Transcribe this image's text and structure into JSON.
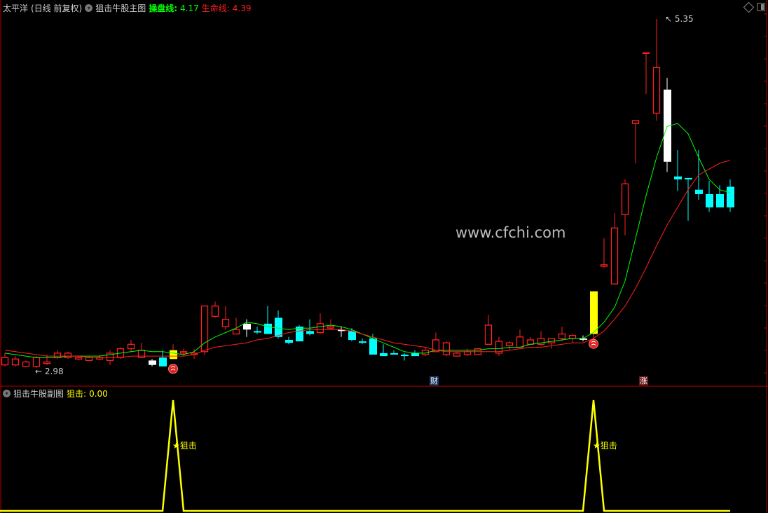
{
  "header": {
    "stock": "太平洋",
    "period": "(日线 前复权)",
    "indicator": "狙击牛股主图",
    "ma1_label": "操盘线:",
    "ma1_value": "4.17",
    "ma2_label": "生命线:",
    "ma2_value": "4.39"
  },
  "sub_header": {
    "indicator": "狙击牛股副图",
    "signal_label": "狙击:",
    "signal_value": "0.00"
  },
  "watermark": "www.cfchi.com",
  "markers": {
    "cai": "财",
    "zhang": "涨",
    "signal_text": "★狙击"
  },
  "icons": {
    "top_right": [
      "diamond-icon",
      "window-toggle-icon"
    ],
    "signal": "ball-icon",
    "dropdown": "chevron-down-icon"
  },
  "colors": {
    "up": "#ff2020",
    "down": "#00ffff",
    "ma1": "#00ff00",
    "ma2": "#ff2020",
    "signal": "#ffff00",
    "white_candle": "#ffffff"
  },
  "chart_data": {
    "type": "candlestick",
    "price_high_label": "5.35",
    "price_low_label": "2.98",
    "candles": [
      {
        "o": 3.0,
        "c": 3.05,
        "h": 3.08,
        "l": 2.99
      },
      {
        "o": 3.0,
        "c": 3.04,
        "h": 3.06,
        "l": 2.99
      },
      {
        "o": 2.99,
        "c": 3.02,
        "h": 3.03,
        "l": 2.99
      },
      {
        "o": 2.99,
        "c": 3.05,
        "h": 3.06,
        "l": 2.98
      },
      {
        "o": 3.01,
        "c": 3.02,
        "h": 3.07,
        "l": 3.0
      },
      {
        "o": 3.05,
        "c": 3.08,
        "h": 3.1,
        "l": 3.04
      },
      {
        "o": 3.05,
        "c": 3.08,
        "h": 3.09,
        "l": 3.04
      },
      {
        "o": 3.04,
        "c": 3.05,
        "h": 3.06,
        "l": 3.03
      },
      {
        "o": 3.03,
        "c": 3.05,
        "h": 3.06,
        "l": 3.03
      },
      {
        "o": 3.04,
        "c": 3.05,
        "h": 3.07,
        "l": 3.03
      },
      {
        "o": 3.03,
        "c": 3.08,
        "h": 3.1,
        "l": 3.0
      },
      {
        "o": 3.05,
        "c": 3.11,
        "h": 3.12,
        "l": 3.04
      },
      {
        "o": 3.11,
        "c": 3.14,
        "h": 3.17,
        "l": 3.09
      },
      {
        "o": 3.05,
        "c": 3.1,
        "h": 3.15,
        "l": 3.05
      },
      {
        "o": 3.03,
        "c": 3.0,
        "h": 3.04,
        "l": 2.99,
        "style": "white"
      },
      {
        "o": 3.05,
        "c": 2.99,
        "h": 3.1,
        "l": 2.99
      },
      {
        "o": 3.04,
        "c": 3.1,
        "h": 3.14,
        "l": 3.04,
        "signal": true
      },
      {
        "o": 3.08,
        "c": 3.09,
        "h": 3.11,
        "l": 3.06
      },
      {
        "o": 3.07,
        "c": 3.08,
        "h": 3.11,
        "l": 3.04
      },
      {
        "o": 3.09,
        "c": 3.4,
        "h": 3.4,
        "l": 3.07
      },
      {
        "o": 3.33,
        "c": 3.4,
        "h": 3.43,
        "l": 3.32
      },
      {
        "o": 3.26,
        "c": 3.31,
        "h": 3.4,
        "l": 3.24
      },
      {
        "o": 3.21,
        "c": 3.24,
        "h": 3.32,
        "l": 3.21
      },
      {
        "o": 3.28,
        "c": 3.24,
        "h": 3.31,
        "l": 3.19,
        "style": "white"
      },
      {
        "o": 3.23,
        "c": 3.22,
        "h": 3.26,
        "l": 3.21
      },
      {
        "o": 3.28,
        "c": 3.21,
        "h": 3.4,
        "l": 3.21
      },
      {
        "o": 3.32,
        "c": 3.19,
        "h": 3.37,
        "l": 3.18
      },
      {
        "o": 3.17,
        "c": 3.15,
        "h": 3.19,
        "l": 3.14
      },
      {
        "o": 3.26,
        "c": 3.16,
        "h": 3.27,
        "l": 3.16
      },
      {
        "o": 3.23,
        "c": 3.21,
        "h": 3.31,
        "l": 3.2
      },
      {
        "o": 3.22,
        "c": 3.28,
        "h": 3.35,
        "l": 3.21
      },
      {
        "o": 3.25,
        "c": 3.26,
        "h": 3.31,
        "l": 3.24
      },
      {
        "o": 3.24,
        "c": 3.23,
        "h": 3.26,
        "l": 3.19,
        "style": "white"
      },
      {
        "o": 3.23,
        "c": 3.17,
        "h": 3.25,
        "l": 3.16
      },
      {
        "o": 3.16,
        "c": 3.15,
        "h": 3.18,
        "l": 3.14
      },
      {
        "o": 3.18,
        "c": 3.07,
        "h": 3.21,
        "l": 3.07
      },
      {
        "o": 3.08,
        "c": 3.06,
        "h": 3.14,
        "l": 3.06
      },
      {
        "o": 3.08,
        "c": 3.07,
        "h": 3.1,
        "l": 3.07
      },
      {
        "o": 3.07,
        "c": 3.06,
        "h": 3.08,
        "l": 3.03
      },
      {
        "o": 3.08,
        "c": 3.06,
        "h": 3.1,
        "l": 3.06
      },
      {
        "o": 3.07,
        "c": 3.1,
        "h": 3.12,
        "l": 3.06
      },
      {
        "o": 3.09,
        "c": 3.17,
        "h": 3.22,
        "l": 3.09
      },
      {
        "o": 3.07,
        "c": 3.15,
        "h": 3.16,
        "l": 3.06
      },
      {
        "o": 3.06,
        "c": 3.08,
        "h": 3.09,
        "l": 3.06
      },
      {
        "o": 3.07,
        "c": 3.09,
        "h": 3.11,
        "l": 3.06
      },
      {
        "o": 3.07,
        "c": 3.11,
        "h": 3.11,
        "l": 3.07
      },
      {
        "o": 3.14,
        "c": 3.27,
        "h": 3.34,
        "l": 3.14
      },
      {
        "o": 3.08,
        "c": 3.16,
        "h": 3.19,
        "l": 3.06
      },
      {
        "o": 3.13,
        "c": 3.15,
        "h": 3.16,
        "l": 3.1
      },
      {
        "o": 3.12,
        "c": 3.19,
        "h": 3.24,
        "l": 3.12
      },
      {
        "o": 3.14,
        "c": 3.17,
        "h": 3.19,
        "l": 3.14
      },
      {
        "o": 3.14,
        "c": 3.18,
        "h": 3.23,
        "l": 3.13
      },
      {
        "o": 3.15,
        "c": 3.18,
        "h": 3.18,
        "l": 3.11
      },
      {
        "o": 3.18,
        "c": 3.21,
        "h": 3.26,
        "l": 3.16
      },
      {
        "o": 3.18,
        "c": 3.2,
        "h": 3.21,
        "l": 3.15
      },
      {
        "o": 3.18,
        "c": 3.18,
        "h": 3.2,
        "l": 3.16,
        "style": "white"
      },
      {
        "o": 3.21,
        "c": 3.5,
        "h": 3.5,
        "l": 3.15,
        "signal": true
      },
      {
        "o": 3.67,
        "c": 3.68,
        "h": 3.86,
        "l": 3.66
      },
      {
        "o": 3.55,
        "c": 3.93,
        "h": 4.03,
        "l": 3.55
      },
      {
        "o": 4.02,
        "c": 4.23,
        "h": 4.26,
        "l": 3.88
      },
      {
        "o": 4.64,
        "c": 4.66,
        "h": 4.66,
        "l": 4.37
      },
      {
        "o": 5.12,
        "c": 5.12,
        "h": 5.12,
        "l": 4.84
      },
      {
        "o": 4.71,
        "c": 5.02,
        "h": 5.35,
        "l": 4.66
      },
      {
        "o": 4.87,
        "c": 4.38,
        "h": 4.95,
        "l": 4.31,
        "style": "white"
      },
      {
        "o": 4.28,
        "c": 4.26,
        "h": 4.46,
        "l": 4.18
      },
      {
        "o": 4.27,
        "c": 4.26,
        "h": 4.27,
        "l": 3.98
      },
      {
        "o": 4.19,
        "c": 4.16,
        "h": 4.46,
        "l": 4.12
      },
      {
        "o": 4.16,
        "c": 4.07,
        "h": 4.25,
        "l": 4.04
      },
      {
        "o": 4.16,
        "c": 4.07,
        "h": 4.22,
        "l": 4.07
      },
      {
        "o": 4.21,
        "c": 4.07,
        "h": 4.26,
        "l": 4.04
      }
    ],
    "series": [
      {
        "name": "操盘线",
        "values": [
          3.08,
          3.07,
          3.06,
          3.05,
          3.05,
          3.05,
          3.06,
          3.06,
          3.06,
          3.06,
          3.07,
          3.08,
          3.09,
          3.1,
          3.09,
          3.09,
          3.08,
          3.07,
          3.09,
          3.15,
          3.19,
          3.22,
          3.25,
          3.29,
          3.28,
          3.26,
          3.25,
          3.24,
          3.25,
          3.25,
          3.26,
          3.27,
          3.26,
          3.24,
          3.21,
          3.18,
          3.15,
          3.12,
          3.09,
          3.08,
          3.08,
          3.1,
          3.1,
          3.1,
          3.1,
          3.1,
          3.11,
          3.11,
          3.12,
          3.12,
          3.14,
          3.15,
          3.16,
          3.17,
          3.18,
          3.18,
          3.22,
          3.29,
          3.39,
          3.57,
          3.86,
          4.15,
          4.41,
          4.62,
          4.64,
          4.57,
          4.41,
          4.26,
          4.19,
          4.17
        ]
      },
      {
        "name": "生命线",
        "values": [
          3.1,
          3.09,
          3.08,
          3.07,
          3.06,
          3.06,
          3.06,
          3.06,
          3.05,
          3.05,
          3.05,
          3.05,
          3.06,
          3.06,
          3.06,
          3.06,
          3.06,
          3.06,
          3.07,
          3.1,
          3.12,
          3.13,
          3.14,
          3.15,
          3.17,
          3.18,
          3.2,
          3.22,
          3.23,
          3.24,
          3.24,
          3.24,
          3.24,
          3.23,
          3.21,
          3.19,
          3.17,
          3.15,
          3.14,
          3.13,
          3.12,
          3.1,
          3.09,
          3.09,
          3.09,
          3.09,
          3.09,
          3.09,
          3.1,
          3.11,
          3.12,
          3.12,
          3.13,
          3.14,
          3.15,
          3.15,
          3.18,
          3.23,
          3.31,
          3.4,
          3.52,
          3.66,
          3.81,
          3.95,
          4.07,
          4.19,
          4.29,
          4.33,
          4.37,
          4.39
        ]
      }
    ],
    "sub_signal": {
      "name": "狙击",
      "spike_indices": [
        16,
        56
      ],
      "spike_value": 1,
      "base_value": 0
    }
  }
}
